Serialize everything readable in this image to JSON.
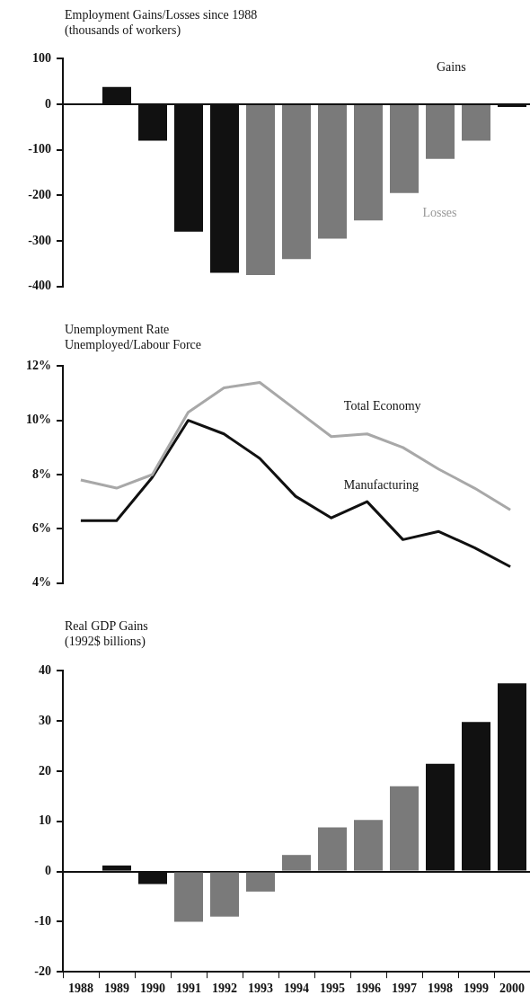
{
  "chart_data": [
    {
      "type": "bar",
      "title": "Employment Gains/Losses since 1988",
      "subtitle": "(thousands of workers)",
      "categories": [
        "1988",
        "1989",
        "1990",
        "1991",
        "1992",
        "1993",
        "1994",
        "1995",
        "1996",
        "1997",
        "1998",
        "1999",
        "2000"
      ],
      "values": [
        0,
        38,
        -80,
        -280,
        -370,
        -375,
        -340,
        -295,
        -255,
        -195,
        -120,
        -80,
        -6
      ],
      "colors": [
        "#111111",
        "#111111",
        "#111111",
        "#111111",
        "#111111",
        "#7a7a7a",
        "#7a7a7a",
        "#7a7a7a",
        "#7a7a7a",
        "#7a7a7a",
        "#7a7a7a",
        "#7a7a7a",
        "#111111"
      ],
      "ylim": [
        -400,
        100
      ],
      "yticks": [
        -400,
        -300,
        -200,
        -100,
        0,
        100
      ],
      "tick_labels": "y",
      "annotations": [
        "Gains",
        "Losses"
      ]
    },
    {
      "type": "line",
      "title": "Unemployment Rate",
      "subtitle": "Unemployed/Labour Force",
      "categories": [
        "1988",
        "1989",
        "1990",
        "1991",
        "1992",
        "1993",
        "1994",
        "1995",
        "1996",
        "1997",
        "1998",
        "1999",
        "2000"
      ],
      "series": [
        {
          "name": "Total Economy",
          "color": "#a8a8a8",
          "values": [
            7.8,
            7.5,
            8.0,
            10.3,
            11.2,
            11.4,
            10.4,
            9.4,
            9.5,
            9.0,
            8.2,
            7.5,
            6.7
          ]
        },
        {
          "name": "Manufacturing",
          "color": "#111111",
          "values": [
            6.3,
            6.3,
            7.9,
            10.0,
            9.5,
            8.6,
            7.2,
            6.4,
            7.0,
            5.6,
            5.9,
            5.3,
            4.6
          ]
        }
      ],
      "ylim": [
        4,
        12
      ],
      "yticks": [
        {
          "value": 4,
          "label": "4%"
        },
        {
          "value": 6,
          "label": "6%"
        },
        {
          "value": 8,
          "label": "8%"
        },
        {
          "value": 10,
          "label": "10%"
        },
        {
          "value": 12,
          "label": "12%"
        }
      ],
      "tick_labels": "y",
      "marker": "none",
      "line_style": "solid"
    },
    {
      "type": "bar",
      "title": "Real GDP Gains",
      "subtitle": "(1992$ billions)",
      "categories": [
        "1988",
        "1989",
        "1990",
        "1991",
        "1992",
        "1993",
        "1994",
        "1995",
        "1996",
        "1997",
        "1998",
        "1999",
        "2000"
      ],
      "values": [
        0,
        1.2,
        -2.5,
        -10,
        -9,
        -4,
        3.3,
        8.8,
        10.3,
        17,
        21.5,
        29.8,
        37.5
      ],
      "colors": [
        "#111111",
        "#111111",
        "#111111",
        "#7a7a7a",
        "#7a7a7a",
        "#7a7a7a",
        "#7a7a7a",
        "#7a7a7a",
        "#7a7a7a",
        "#7a7a7a",
        "#111111",
        "#111111",
        "#111111"
      ],
      "ylim": [
        -20,
        40
      ],
      "yticks": [
        -20,
        -10,
        0,
        10,
        20,
        30,
        40
      ]
    }
  ]
}
